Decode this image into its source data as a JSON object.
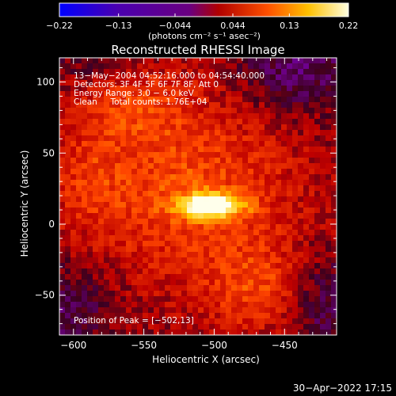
{
  "chart_data": {
    "type": "heatmap",
    "title": "Reconstructed RHESSI Image",
    "xlabel": "Heliocentric X (arcsec)",
    "ylabel": "Heliocentric Y (arcsec)",
    "xlim": [
      -610,
      -413
    ],
    "ylim": [
      -78,
      117
    ],
    "x_ticks": [
      -600,
      -550,
      -500,
      -450
    ],
    "x_tick_labels": [
      "−600",
      "−550",
      "−500",
      "−450"
    ],
    "y_ticks": [
      -50,
      0,
      50,
      100
    ],
    "y_tick_labels": [
      "−50",
      "0",
      "50",
      "100"
    ],
    "colorbar": {
      "range": [
        -0.22,
        0.22
      ],
      "ticks": [
        -0.22,
        -0.13,
        -0.044,
        0.044,
        0.13,
        0.22
      ],
      "tick_labels": [
        "−0.22",
        "−0.13",
        "−0.044",
        "0.044",
        "0.13",
        "0.22"
      ],
      "units_label": "(photons cm⁻² s⁻¹ asec⁻²)",
      "colors": [
        "#0000ff",
        "#4a00b0",
        "#6a0080",
        "#b00000",
        "#ff5000",
        "#ffc000",
        "#ffffe0"
      ]
    },
    "annotations": [
      "13−May−2004 04:52:16.000 to 04:54:40.000",
      "Detectors: 3F 4F 5F 6F 7F 8F, Att 0",
      "Energy Range: 3.0 − 6.0 keV",
      "Clean     Total counts: 1.76E+04"
    ],
    "peak_text": "Position of Peak = [−502,13]",
    "peak_position": [
      -502,
      13
    ],
    "grid": false,
    "image_model": {
      "background": 0.028,
      "sources": [
        {
          "x": -502,
          "y": 13,
          "sx": 16,
          "sy": 6,
          "amp": 0.19
        },
        {
          "x": -520,
          "y": 25,
          "sx": 55,
          "sy": 45,
          "amp": 0.07
        },
        {
          "x": -470,
          "y": -45,
          "sx": 25,
          "sy": 22,
          "amp": 0.055
        },
        {
          "x": -555,
          "y": 85,
          "sx": 25,
          "sy": 18,
          "amp": 0.045
        },
        {
          "x": -590,
          "y": 35,
          "sx": 18,
          "sy": 28,
          "amp": 0.03
        }
      ],
      "negative_regions": [
        {
          "x": -440,
          "y": 110,
          "sx": 30,
          "sy": 22,
          "amp": 0.06
        },
        {
          "x": -420,
          "y": -55,
          "sx": 18,
          "sy": 25,
          "amp": 0.05
        },
        {
          "x": -605,
          "y": -60,
          "sx": 25,
          "sy": 25,
          "amp": 0.045
        },
        {
          "x": -580,
          "y": 115,
          "sx": 25,
          "sy": 12,
          "amp": 0.03
        }
      ]
    }
  },
  "footer": {
    "timestamp": "30−Apr−2022 17:15"
  }
}
